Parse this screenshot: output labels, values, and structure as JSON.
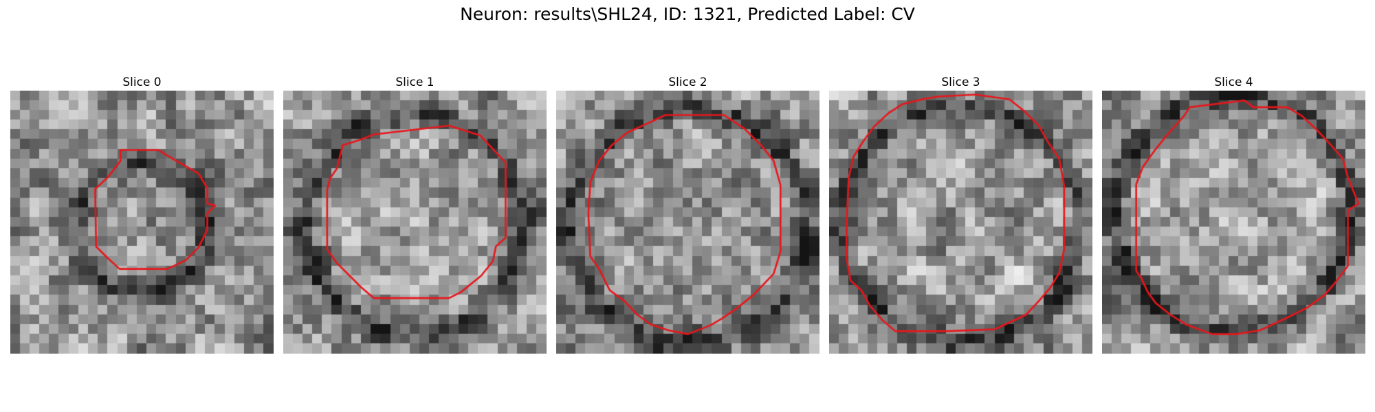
{
  "figure": {
    "title": "Neuron: results\\SHL24, ID: 1321, Predicted Label: CV"
  },
  "panels": [
    {
      "title": "Slice 0"
    },
    {
      "title": "Slice 1"
    },
    {
      "title": "Slice 2"
    },
    {
      "title": "Slice 3"
    },
    {
      "title": "Slice 4"
    }
  ],
  "colors": {
    "contour": "#e8161b",
    "colormap": "gray"
  }
}
